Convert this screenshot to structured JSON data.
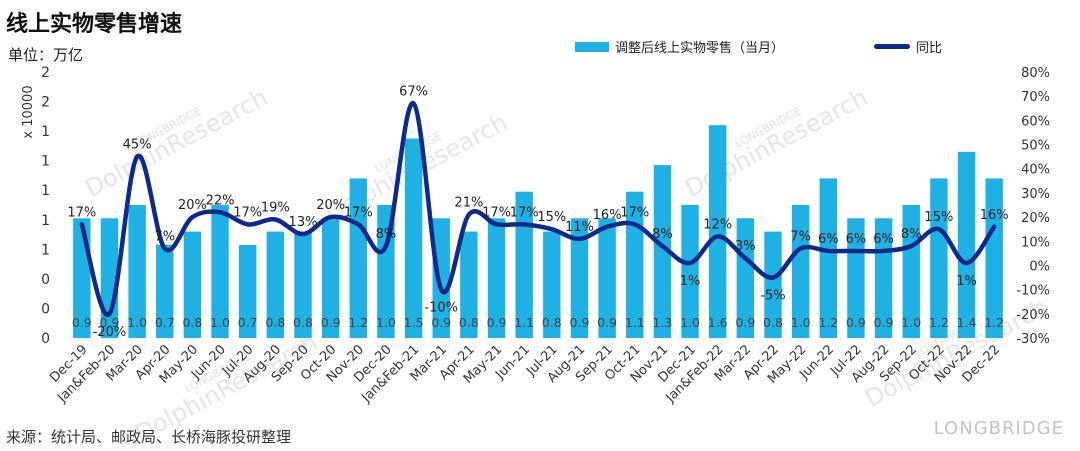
{
  "title": "线上实物零售增速",
  "unit_label": "单位：万亿",
  "source": "来源：统计局、邮政局、长桥海豚投研整理",
  "watermark_brand": "LONGBRIDGE",
  "watermark_text": "DolphinResearch",
  "colors": {
    "bar": "#1fb1e3",
    "line": "#0d2a8a",
    "axis_text": "#333333"
  },
  "chart_data": {
    "type": "bar",
    "categories": [
      "Dec-19",
      "Jan&Feb-20",
      "Mar-20",
      "Apr-20",
      "May-20",
      "Jun-20",
      "Jul-20",
      "Aug-20",
      "Sep-20",
      "Oct-20",
      "Nov-20",
      "Dec-20",
      "Jan&Feb-21",
      "Mar-21",
      "Apr-21",
      "May-21",
      "Jun-21",
      "Jul-21",
      "Aug-21",
      "Sep-21",
      "Oct-21",
      "Nov-21",
      "Dec-21",
      "Jan&Feb-22",
      "Mar-22",
      "Apr-22",
      "May-22",
      "Jun-22",
      "Jul-22",
      "Aug-22",
      "Sep-22",
      "Oct-22",
      "Nov-22",
      "Dec-22"
    ],
    "series": [
      {
        "name": "调整后线上实物零售（当月）",
        "type": "bar",
        "axis": "left",
        "values": [
          0.9,
          0.9,
          1.0,
          0.7,
          0.8,
          1.0,
          0.7,
          0.8,
          0.8,
          0.9,
          1.2,
          1.0,
          1.5,
          0.9,
          0.8,
          0.9,
          1.1,
          0.8,
          0.9,
          0.9,
          1.1,
          1.3,
          1.0,
          1.6,
          0.9,
          0.8,
          1.0,
          1.2,
          0.9,
          0.9,
          1.0,
          1.2,
          1.4,
          1.2
        ],
        "labels": [
          "0.9",
          "0.9",
          "1.0",
          "0.7",
          "0.8",
          "1.0",
          "0.7",
          "0.8",
          "0.8",
          "0.9",
          "1.2",
          "1.0",
          "1.5",
          "0.9",
          "0.8",
          "0.9",
          "1.1",
          "0.8",
          "0.9",
          "0.9",
          "1.1",
          "1.3",
          "1.0",
          "1.6",
          "0.9",
          "0.8",
          "1.0",
          "1.2",
          "0.9",
          "0.9",
          "1.0",
          "1.2",
          "1.4",
          "1.2"
        ]
      },
      {
        "name": "同比",
        "type": "line",
        "axis": "right",
        "values": [
          17,
          -20,
          45,
          7,
          20,
          22,
          17,
          19,
          13,
          20,
          17,
          8,
          67,
          -10,
          21,
          17,
          17,
          15,
          11,
          16,
          17,
          8,
          1,
          12,
          3,
          -5,
          7,
          6,
          6,
          6,
          8,
          15,
          1,
          16
        ],
        "labels": [
          "17%",
          "-20%",
          "45%",
          "7%",
          "20%",
          "22%",
          "17%",
          "19%",
          "13%",
          "20%",
          "17%",
          "8%",
          "67%",
          "-10%",
          "21%",
          "17%",
          "17%",
          "15%",
          "11%",
          "16%",
          "17%",
          "8%",
          "1%",
          "12%",
          "3%",
          "-5%",
          "7%",
          "6%",
          "6%",
          "6%",
          "8%",
          "15%",
          "1%",
          "16%"
        ]
      }
    ],
    "y_left": {
      "label": "x 10000",
      "ticks": [
        "0",
        "0",
        "0",
        "1",
        "1",
        "1",
        "1",
        "1",
        "2",
        "2"
      ],
      "range": [
        0,
        2
      ]
    },
    "y_right": {
      "ticks": [
        "-30%",
        "-20%",
        "-10%",
        "0%",
        "10%",
        "20%",
        "30%",
        "40%",
        "50%",
        "60%",
        "70%",
        "80%"
      ],
      "range": [
        -30,
        80
      ]
    },
    "legend_position": "top",
    "grid": false
  }
}
